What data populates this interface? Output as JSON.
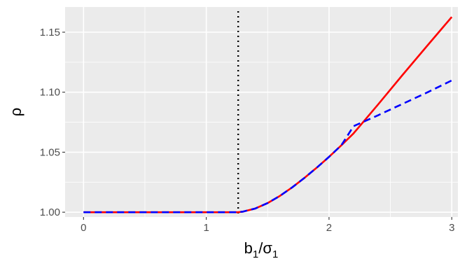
{
  "chart_data": {
    "type": "line",
    "title": "",
    "xlabel": "b",
    "xlabel_sub": "1",
    "xlabel_slash": "/",
    "xlabel_sigma": "σ",
    "xlabel_sigma_sub": "1",
    "ylabel": "ρ",
    "xlim": [
      -0.15,
      3.05
    ],
    "ylim": [
      0.996,
      1.171
    ],
    "x_ticks": [
      0,
      1,
      2,
      3
    ],
    "x_tick_labels": [
      "0",
      "1",
      "2",
      "3"
    ],
    "y_ticks": [
      1.0,
      1.05,
      1.1,
      1.15
    ],
    "y_tick_labels": [
      "1.00",
      "1.05",
      "1.10",
      "1.15"
    ],
    "grid": true,
    "vline": {
      "x": 1.26,
      "style": "dotted",
      "color": "#000000"
    },
    "series": [
      {
        "color": "#ff0000",
        "style": "solid",
        "x": [
          0,
          0.5,
          1.0,
          1.26,
          1.3,
          1.4,
          1.5,
          1.6,
          1.7,
          1.8,
          1.9,
          2.0,
          2.1,
          2.2,
          2.4,
          2.6,
          2.8,
          3.0
        ],
        "y": [
          1.0,
          1.0,
          1.0,
          1.0,
          1.0005,
          1.0031,
          1.0076,
          1.0136,
          1.0207,
          1.0286,
          1.0371,
          1.0461,
          1.0557,
          1.0657,
          1.0898,
          1.1145,
          1.1387,
          1.1627
        ]
      },
      {
        "color": "#0000ff",
        "style": "dashed",
        "x": [
          0,
          0.5,
          1.0,
          1.26,
          1.3,
          1.4,
          1.5,
          1.6,
          1.7,
          1.8,
          1.9,
          2.0,
          2.1,
          2.2,
          2.4,
          2.6,
          2.8,
          3.0
        ],
        "y": [
          1.0,
          1.0,
          1.0,
          1.0,
          1.0005,
          1.0031,
          1.0076,
          1.0136,
          1.0207,
          1.0286,
          1.0371,
          1.0461,
          1.0557,
          1.0717,
          1.0808,
          1.0903,
          1.0998,
          1.1098
        ]
      }
    ]
  }
}
